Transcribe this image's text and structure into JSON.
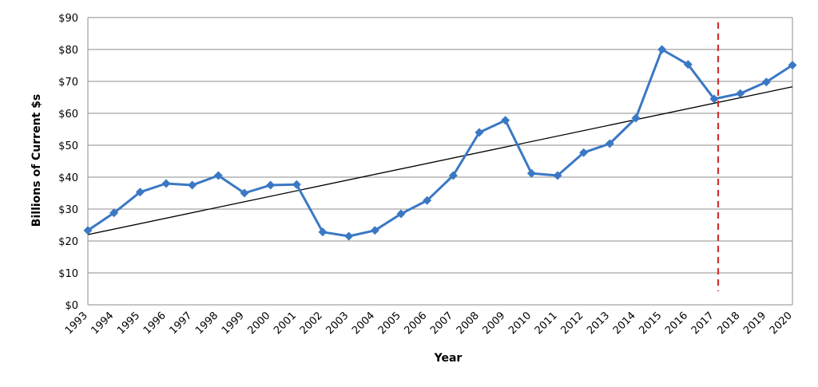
{
  "chart_data": {
    "type": "line",
    "xlabel": "Year",
    "ylabel": "Billions of Current $s",
    "ylim": [
      0,
      90
    ],
    "y_ticks": [
      0,
      10,
      20,
      30,
      40,
      50,
      60,
      70,
      80,
      90
    ],
    "y_tick_labels": [
      "$0",
      "$10",
      "$20",
      "$30",
      "$40",
      "$50",
      "$60",
      "$70",
      "$80",
      "$90"
    ],
    "grid": true,
    "legend": "none",
    "categories": [
      "1993",
      "1994",
      "1995",
      "1996",
      "1997",
      "1998",
      "1999",
      "2000",
      "2001",
      "2002",
      "2003",
      "2004",
      "2005",
      "2006",
      "2007",
      "2008",
      "2009",
      "2010",
      "2011",
      "2012",
      "2013",
      "2014",
      "2015",
      "2016",
      "2017",
      "2018",
      "2019",
      "2020"
    ],
    "series": [
      {
        "values": [
          23.3,
          28.8,
          35.3,
          38.0,
          37.5,
          40.5,
          35.0,
          37.5,
          37.7,
          22.8,
          21.5,
          23.3,
          28.5,
          32.7,
          40.5,
          54.0,
          57.8,
          41.2,
          40.5,
          47.7,
          50.5,
          58.5,
          80.0,
          75.3,
          64.5,
          66.2,
          69.8,
          75.1
        ],
        "color": "#3a78c3",
        "marker": "diamond"
      }
    ],
    "trendline": {
      "type": "linear",
      "start_value": 22.0,
      "end_value": 68.3,
      "color": "#000000"
    },
    "vertical_marker": {
      "year": "2017",
      "style": "dashed",
      "color": "#d03030"
    }
  }
}
